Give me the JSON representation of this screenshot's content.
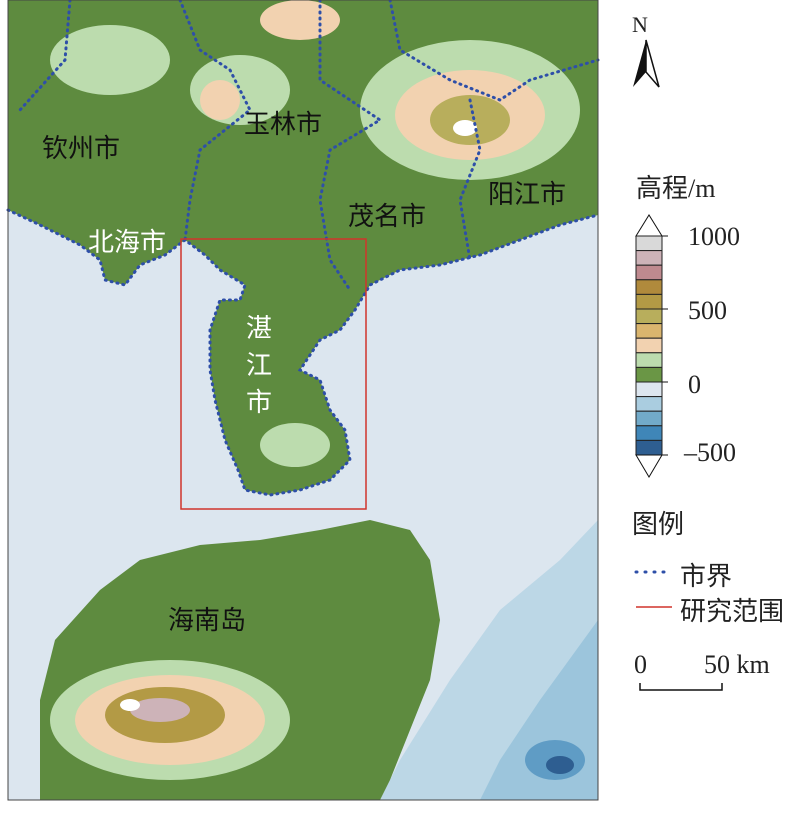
{
  "map": {
    "place_labels": [
      {
        "name": "钦州市"
      },
      {
        "name": "玉林市"
      },
      {
        "name": "北海市"
      },
      {
        "name": "茂名市"
      },
      {
        "name": "阳江市"
      },
      {
        "name": "湛江市"
      },
      {
        "name": "海南岛"
      }
    ],
    "colors": {
      "sea": "#dce6ef",
      "lowland": "#5e8b3f",
      "boundary": "#2e4fa8",
      "study_area": "#d0342c"
    }
  },
  "north_arrow": {
    "label": "N"
  },
  "elevation_legend": {
    "title": "高程/m",
    "ticks": [
      "1000",
      "500",
      "0",
      "–500"
    ],
    "classes": [
      "#d9d9d9",
      "#cdb3b8",
      "#bf8a8f",
      "#b08a3c",
      "#b39a45",
      "#b8ae5c",
      "#dab56e",
      "#f2d2b0",
      "#bcdcae",
      "#6a9645",
      "#dde6ef",
      "#aacde0",
      "#72aac9",
      "#3f86b8",
      "#2e5e91"
    ]
  },
  "legend": {
    "title": "图例",
    "items": [
      {
        "label": "市界",
        "symbol": "dotted-blue-line"
      },
      {
        "label": "研究范围",
        "symbol": "red-line"
      }
    ]
  },
  "scale_bar": {
    "start": "0",
    "end": "50 km"
  }
}
